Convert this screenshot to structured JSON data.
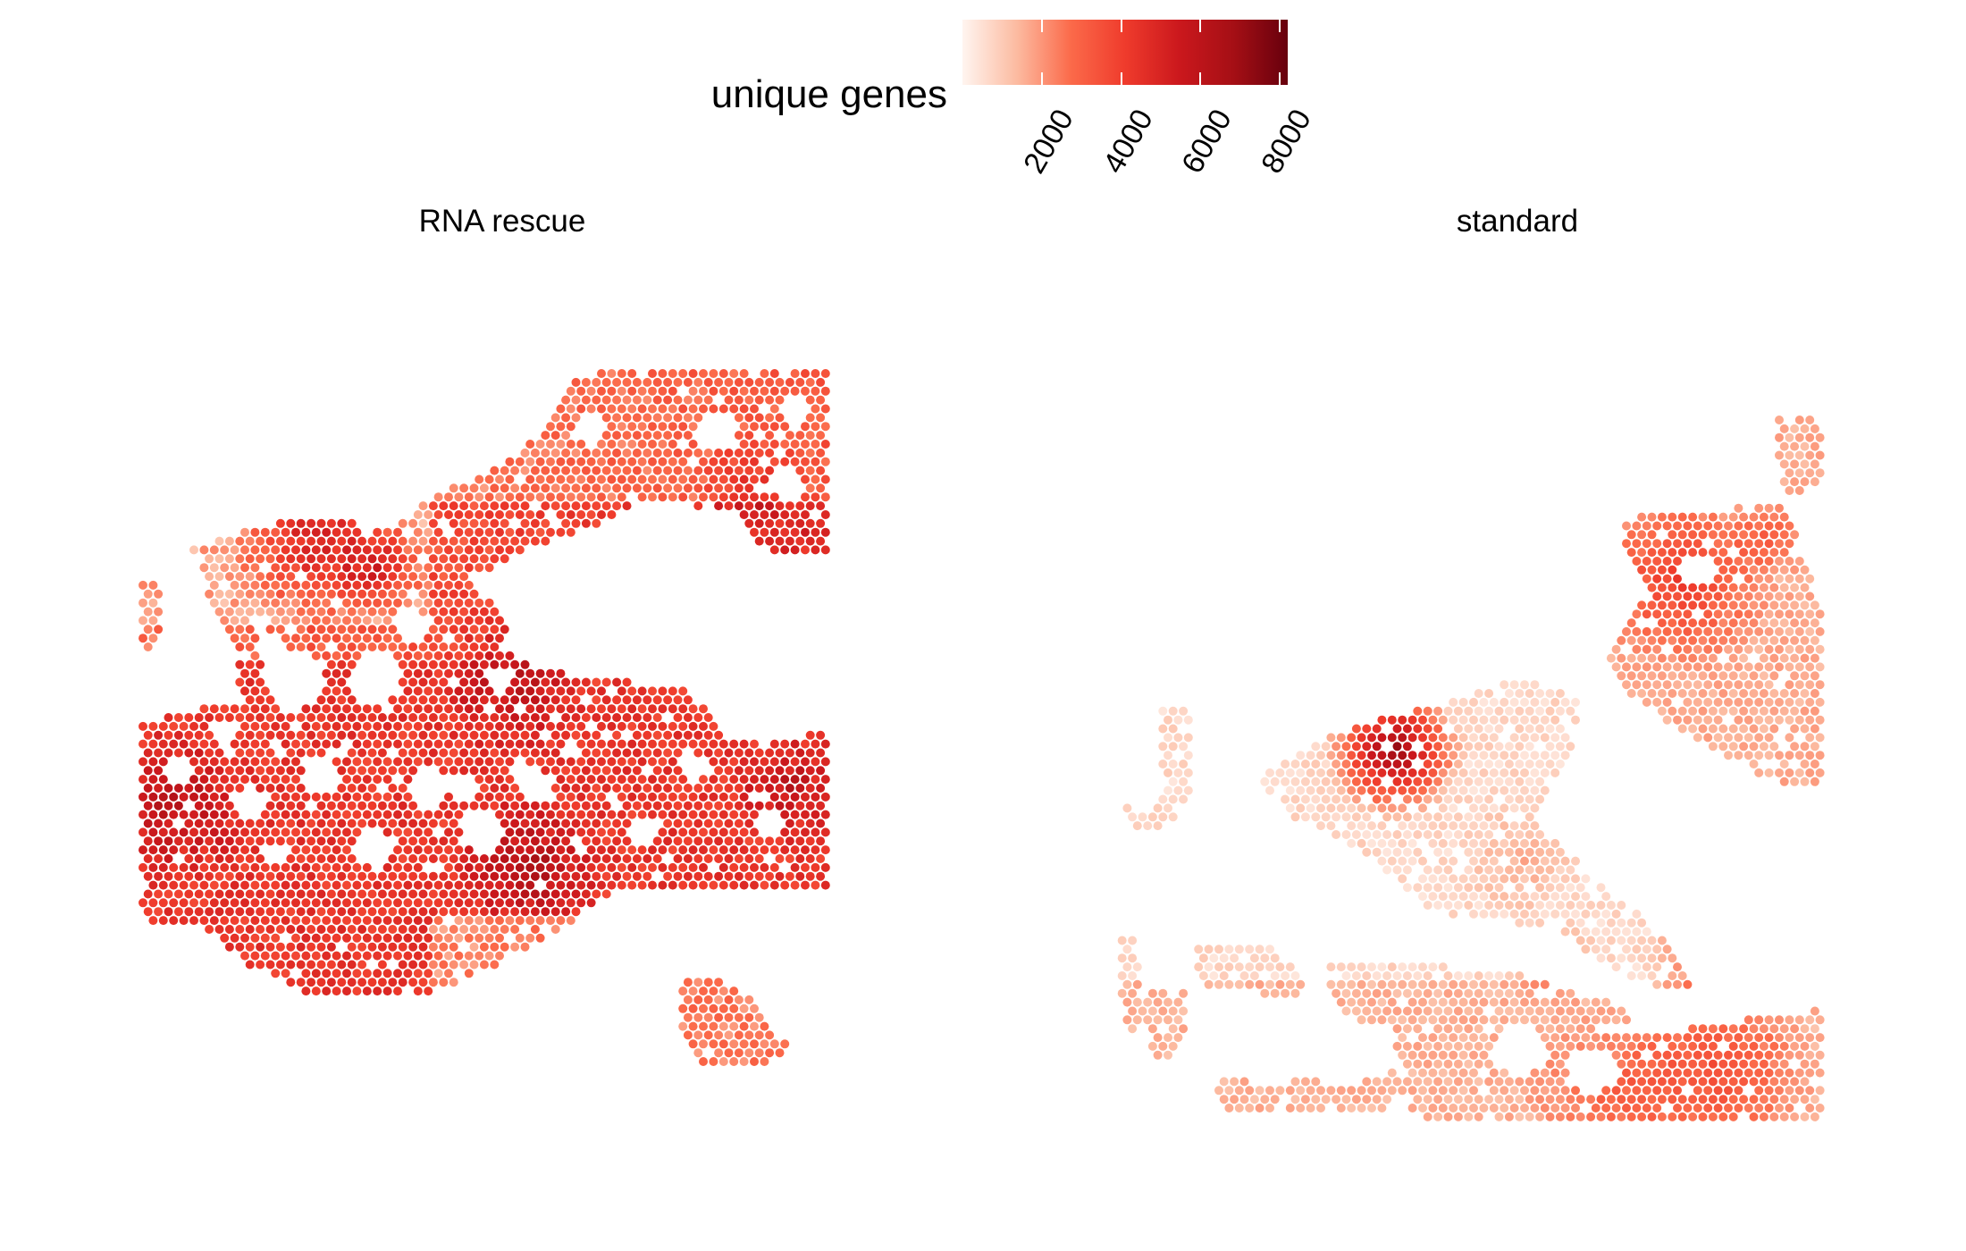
{
  "chart_data": {
    "type": "heatmap",
    "legend": {
      "title": "unique genes",
      "placement": "top",
      "range": [
        0,
        8200
      ],
      "ticks": [
        2000,
        4000,
        6000,
        8000
      ],
      "tick_labels": [
        "2000",
        "4000",
        "6000",
        "8000"
      ],
      "colors": [
        "#fff5f0",
        "#fcbba1",
        "#fb6a4a",
        "#ef3b2c",
        "#cb181d",
        "#a50f15",
        "#67000d"
      ]
    },
    "grid": false,
    "panels": [
      {
        "title": "RNA rescue",
        "dominant_range": [
          2000,
          8200
        ],
        "regions": [
          {
            "area": "upper band",
            "level_genes": 3000
          },
          {
            "area": "upper-left ridge",
            "level_genes": 7500
          },
          {
            "area": "middle body",
            "level_genes": 5200
          },
          {
            "area": "left lobe",
            "level_genes": 5800
          },
          {
            "area": "lower body",
            "level_genes": 4600
          },
          {
            "area": "small island",
            "level_genes": 3000
          }
        ]
      },
      {
        "title": "standard",
        "dominant_range": [
          200,
          7800
        ],
        "regions": [
          {
            "area": "upper-right lobe",
            "level_genes": 2800
          },
          {
            "area": "central arm",
            "level_genes": 900
          },
          {
            "area": "central ridge",
            "level_genes": 7200
          },
          {
            "area": "lower band",
            "level_genes": 2000
          },
          {
            "area": "lower-right block",
            "level_genes": 3600
          }
        ]
      }
    ]
  }
}
